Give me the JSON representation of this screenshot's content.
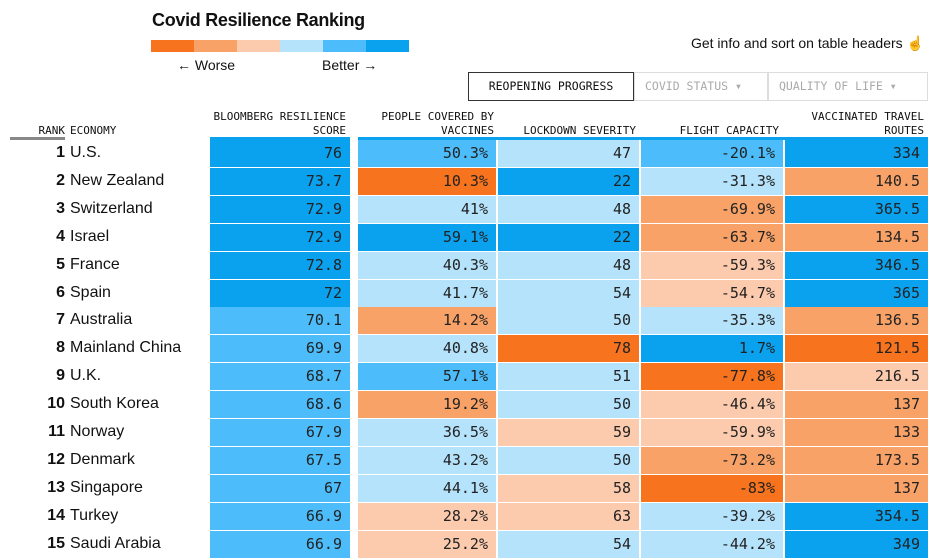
{
  "title": "Covid Resilience Ranking",
  "legend": {
    "worse": "← Worse",
    "better": "Better →",
    "colors": [
      "#f7731d",
      "#f9a268",
      "#fccaad",
      "#b5e3fb",
      "#4cbdfa",
      "#0aa2ef"
    ]
  },
  "hint": "Get info and sort on table headers",
  "hint_icon": "pointer-hand-icon",
  "tabs": [
    {
      "label": "REOPENING PROGRESS",
      "active": true
    },
    {
      "label": "COVID STATUS ▾",
      "active": false
    },
    {
      "label": "QUALITY OF LIFE ▾",
      "active": false
    }
  ],
  "columns": {
    "rank": "RANK",
    "economy": "ECONOMY",
    "score": "BLOOMBERG RESILIENCE SCORE",
    "vaccines": "PEOPLE COVERED BY VACCINES",
    "lockdown": "LOCKDOWN SEVERITY",
    "flight": "FLIGHT CAPACITY",
    "routes": "VACCINATED TRAVEL ROUTES"
  },
  "rows": [
    {
      "rank": "1",
      "economy": "U.S.",
      "score": "76",
      "vaccines": "50.3%",
      "lockdown": "47",
      "flight": "-20.1%",
      "routes": "334",
      "levels": [
        6,
        5,
        4,
        5,
        6
      ]
    },
    {
      "rank": "2",
      "economy": "New Zealand",
      "score": "73.7",
      "vaccines": "10.3%",
      "lockdown": "22",
      "flight": "-31.3%",
      "routes": "140.5",
      "levels": [
        6,
        1,
        6,
        4,
        2
      ]
    },
    {
      "rank": "3",
      "economy": "Switzerland",
      "score": "72.9",
      "vaccines": "41%",
      "lockdown": "48",
      "flight": "-69.9%",
      "routes": "365.5",
      "levels": [
        6,
        4,
        4,
        2,
        6
      ]
    },
    {
      "rank": "4",
      "economy": "Israel",
      "score": "72.9",
      "vaccines": "59.1%",
      "lockdown": "22",
      "flight": "-63.7%",
      "routes": "134.5",
      "levels": [
        6,
        6,
        6,
        2,
        2
      ]
    },
    {
      "rank": "5",
      "economy": "France",
      "score": "72.8",
      "vaccines": "40.3%",
      "lockdown": "48",
      "flight": "-59.3%",
      "routes": "346.5",
      "levels": [
        6,
        4,
        4,
        3,
        6
      ]
    },
    {
      "rank": "6",
      "economy": "Spain",
      "score": "72",
      "vaccines": "41.7%",
      "lockdown": "54",
      "flight": "-54.7%",
      "routes": "365",
      "levels": [
        6,
        4,
        4,
        3,
        6
      ]
    },
    {
      "rank": "7",
      "economy": "Australia",
      "score": "70.1",
      "vaccines": "14.2%",
      "lockdown": "50",
      "flight": "-35.3%",
      "routes": "136.5",
      "levels": [
        5,
        2,
        4,
        4,
        2
      ]
    },
    {
      "rank": "8",
      "economy": "Mainland China",
      "score": "69.9",
      "vaccines": "40.8%",
      "lockdown": "78",
      "flight": "1.7%",
      "routes": "121.5",
      "levels": [
        5,
        4,
        1,
        6,
        1
      ]
    },
    {
      "rank": "9",
      "economy": "U.K.",
      "score": "68.7",
      "vaccines": "57.1%",
      "lockdown": "51",
      "flight": "-77.8%",
      "routes": "216.5",
      "levels": [
        5,
        5,
        4,
        1,
        3
      ]
    },
    {
      "rank": "10",
      "economy": "South Korea",
      "score": "68.6",
      "vaccines": "19.2%",
      "lockdown": "50",
      "flight": "-46.4%",
      "routes": "137",
      "levels": [
        5,
        2,
        4,
        3,
        2
      ]
    },
    {
      "rank": "11",
      "economy": "Norway",
      "score": "67.9",
      "vaccines": "36.5%",
      "lockdown": "59",
      "flight": "-59.9%",
      "routes": "133",
      "levels": [
        5,
        4,
        3,
        3,
        2
      ]
    },
    {
      "rank": "12",
      "economy": "Denmark",
      "score": "67.5",
      "vaccines": "43.2%",
      "lockdown": "50",
      "flight": "-73.2%",
      "routes": "173.5",
      "levels": [
        5,
        4,
        4,
        2,
        2
      ]
    },
    {
      "rank": "13",
      "economy": "Singapore",
      "score": "67",
      "vaccines": "44.1%",
      "lockdown": "58",
      "flight": "-83%",
      "routes": "137",
      "levels": [
        5,
        4,
        3,
        1,
        2
      ]
    },
    {
      "rank": "14",
      "economy": "Turkey",
      "score": "66.9",
      "vaccines": "28.2%",
      "lockdown": "63",
      "flight": "-39.2%",
      "routes": "354.5",
      "levels": [
        5,
        3,
        3,
        4,
        6
      ]
    },
    {
      "rank": "15",
      "economy": "Saudi Arabia",
      "score": "66.9",
      "vaccines": "25.2%",
      "lockdown": "54",
      "flight": "-44.2%",
      "routes": "349",
      "levels": [
        5,
        3,
        4,
        4,
        6
      ]
    }
  ]
}
